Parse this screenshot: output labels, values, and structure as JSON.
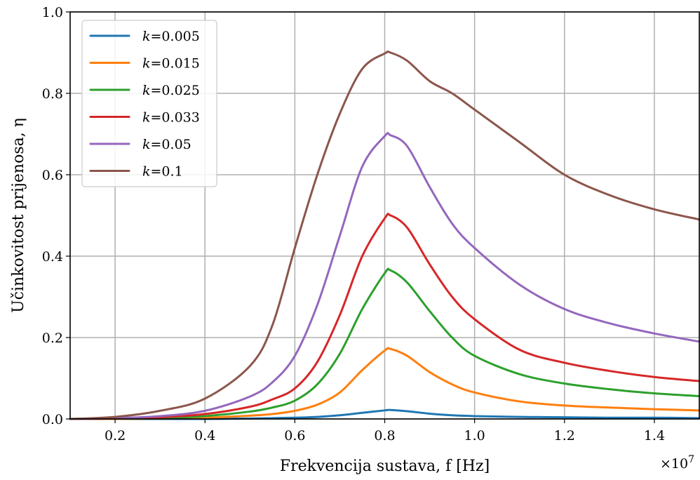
{
  "chart_data": {
    "type": "line",
    "title": "",
    "xlabel": "Frekvencija sustava, f [Hz]",
    "ylabel": "Učinkovitost prijenosa, η",
    "x_multiplier_label": "×10",
    "x_multiplier_exponent": "7",
    "xlim": [
      0.1,
      1.5
    ],
    "ylim": [
      0.0,
      1.0
    ],
    "x_ticks": [
      0.2,
      0.4,
      0.6,
      0.8,
      1.0,
      1.2,
      1.4
    ],
    "x_tick_labels": [
      "0.2",
      "0.4",
      "0.6",
      "0.8",
      "1.0",
      "1.2",
      "1.4"
    ],
    "y_ticks": [
      0.0,
      0.2,
      0.4,
      0.6,
      0.8,
      1.0
    ],
    "y_tick_labels": [
      "0.0",
      "0.2",
      "0.4",
      "0.6",
      "0.8",
      "1.0"
    ],
    "grid": true,
    "legend_position": "top-left",
    "x": [
      0.1,
      0.2,
      0.3,
      0.4,
      0.5,
      0.55,
      0.6,
      0.65,
      0.7,
      0.75,
      0.8,
      0.813,
      0.85,
      0.9,
      0.95,
      1.0,
      1.1,
      1.2,
      1.3,
      1.4,
      1.5
    ],
    "series": [
      {
        "name": "k=0.005",
        "label_var": "k",
        "label_val": "=0.005",
        "color": "#1f77b4",
        "values": [
          0.0,
          0.0,
          0.0,
          0.0,
          0.001,
          0.002,
          0.003,
          0.005,
          0.009,
          0.015,
          0.021,
          0.022,
          0.019,
          0.013,
          0.009,
          0.007,
          0.005,
          0.004,
          0.003,
          0.003,
          0.002
        ]
      },
      {
        "name": "k=0.015",
        "label_var": "k",
        "label_val": "=0.015",
        "color": "#ff7f0e",
        "values": [
          0.0,
          0.0,
          0.001,
          0.003,
          0.008,
          0.012,
          0.02,
          0.035,
          0.065,
          0.12,
          0.168,
          0.172,
          0.155,
          0.115,
          0.085,
          0.065,
          0.043,
          0.033,
          0.028,
          0.024,
          0.021
        ]
      },
      {
        "name": "k=0.025",
        "label_var": "k",
        "label_val": "=0.025",
        "color": "#2ca02c",
        "values": [
          0.0,
          0.001,
          0.002,
          0.007,
          0.018,
          0.028,
          0.045,
          0.085,
          0.16,
          0.27,
          0.358,
          0.365,
          0.335,
          0.265,
          0.2,
          0.155,
          0.11,
          0.087,
          0.073,
          0.063,
          0.056
        ]
      },
      {
        "name": "k=0.033",
        "label_var": "k",
        "label_val": "=0.033",
        "color": "#d62728",
        "values": [
          0.0,
          0.001,
          0.004,
          0.012,
          0.03,
          0.048,
          0.075,
          0.14,
          0.255,
          0.4,
          0.493,
          0.5,
          0.47,
          0.38,
          0.3,
          0.245,
          0.17,
          0.138,
          0.118,
          0.103,
          0.093
        ]
      },
      {
        "name": "k=0.05",
        "label_var": "k",
        "label_val": "=0.05",
        "color": "#9467bd",
        "values": [
          0.0,
          0.002,
          0.007,
          0.02,
          0.055,
          0.09,
          0.155,
          0.28,
          0.45,
          0.62,
          0.695,
          0.697,
          0.67,
          0.57,
          0.48,
          0.42,
          0.33,
          0.27,
          0.235,
          0.21,
          0.19
        ]
      },
      {
        "name": "k=0.1",
        "label_var": "k",
        "label_val": "=0.1",
        "color": "#8c564b",
        "values": [
          0.0,
          0.005,
          0.02,
          0.05,
          0.13,
          0.23,
          0.42,
          0.6,
          0.75,
          0.86,
          0.898,
          0.9,
          0.88,
          0.83,
          0.8,
          0.76,
          0.68,
          0.6,
          0.55,
          0.515,
          0.49
        ]
      }
    ]
  }
}
